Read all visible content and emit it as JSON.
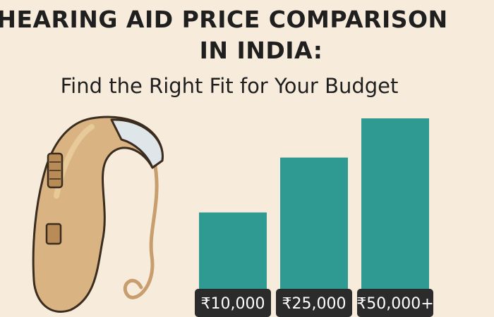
{
  "title_line1": "HEARING AID PRICE COMPARISON",
  "title_line2": "IN INDIA:",
  "subtitle": "Find the Right Fit for Your Budget",
  "colors": {
    "background": "#f7ecdc",
    "bar": "#2f9a92",
    "label_bg": "#2b2b2b",
    "device_body": "#d9b382",
    "device_tip": "#dfe6e9"
  },
  "icons": {
    "illustration": "hearing-aid-icon"
  },
  "chart_data": {
    "type": "bar",
    "title": "",
    "categories": [
      "₹10,000",
      "₹25,000",
      "₹50,000+"
    ],
    "values": [
      10000,
      25000,
      50000
    ],
    "ylim": [
      0,
      50000
    ],
    "xlabel": "",
    "ylabel": "",
    "grid": false,
    "legend": "none"
  }
}
